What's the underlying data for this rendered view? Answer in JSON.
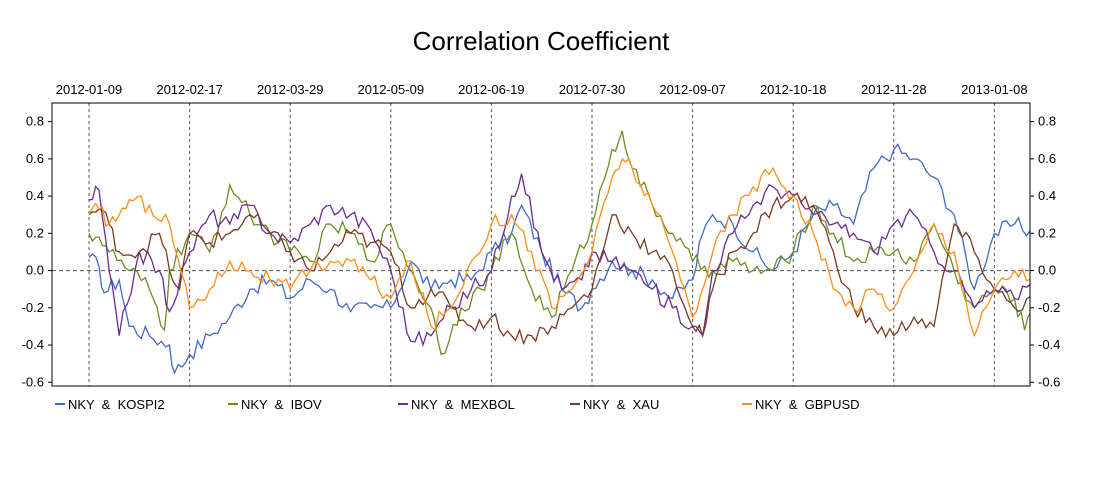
{
  "chart_data": {
    "type": "line",
    "title": "Correlation Coefficient",
    "xlabel": "",
    "ylabel": "",
    "x_tick_labels": [
      "2012-01-09",
      "2012-02-17",
      "2012-03-29",
      "2012-05-09",
      "2012-06-19",
      "2012-07-30",
      "2012-09-07",
      "2012-10-18",
      "2012-11-28",
      "2013-01-08"
    ],
    "x_range": [
      0,
      9
    ],
    "ylim": [
      -0.62,
      0.9
    ],
    "y_ticks": [
      0.8,
      0.6,
      0.4,
      0.2,
      0.0,
      -0.2,
      -0.4,
      -0.6
    ],
    "y_tick_labels": [
      "0.8",
      "0.6",
      "0.4",
      "0.2",
      "0.0",
      "-0.2",
      "-0.4",
      "-0.6"
    ],
    "legend_position": "bottom",
    "grid": "vertical dashed lines at date ticks, horizontal dashed line at 0",
    "series": [
      {
        "name": "NKY  &  KOSPI2",
        "color": "#4169c8",
        "anchors": [
          [
            0,
            0.07
          ],
          [
            0.1,
            0.02
          ],
          [
            0.15,
            -0.12
          ],
          [
            0.3,
            -0.05
          ],
          [
            0.4,
            -0.3
          ],
          [
            0.6,
            -0.35
          ],
          [
            0.8,
            -0.4
          ],
          [
            0.85,
            -0.55
          ],
          [
            1.0,
            -0.45
          ],
          [
            1.2,
            -0.35
          ],
          [
            1.4,
            -0.25
          ],
          [
            1.6,
            -0.1
          ],
          [
            1.8,
            -0.05
          ],
          [
            2.0,
            -0.15
          ],
          [
            2.2,
            -0.05
          ],
          [
            2.4,
            -0.1
          ],
          [
            2.6,
            -0.22
          ],
          [
            2.8,
            -0.2
          ],
          [
            3.0,
            -0.2
          ],
          [
            3.2,
            0.05
          ],
          [
            3.4,
            -0.1
          ],
          [
            3.6,
            -0.05
          ],
          [
            3.8,
            -0.05
          ],
          [
            4.0,
            0.1
          ],
          [
            4.2,
            0.2
          ],
          [
            4.3,
            0.35
          ],
          [
            4.5,
            0.1
          ],
          [
            4.7,
            -0.1
          ],
          [
            4.9,
            -0.2
          ],
          [
            5.0,
            -0.1
          ],
          [
            5.2,
            0.05
          ],
          [
            5.4,
            0.0
          ],
          [
            5.6,
            -0.05
          ],
          [
            5.8,
            -0.15
          ],
          [
            6.0,
            -0.05
          ],
          [
            6.1,
            0.2
          ],
          [
            6.2,
            0.3
          ],
          [
            6.4,
            0.25
          ],
          [
            6.6,
            0.1
          ],
          [
            6.8,
            0.0
          ],
          [
            7.0,
            0.1
          ],
          [
            7.2,
            0.3
          ],
          [
            7.4,
            0.35
          ],
          [
            7.6,
            0.25
          ],
          [
            7.8,
            0.55
          ],
          [
            8.0,
            0.65
          ],
          [
            8.2,
            0.6
          ],
          [
            8.4,
            0.5
          ],
          [
            8.6,
            0.3
          ],
          [
            8.8,
            -0.1
          ],
          [
            9.0,
            0.2
          ],
          [
            9.2,
            0.25
          ],
          [
            9.4,
            0.2
          ]
        ]
      },
      {
        "name": "NKY  &  IBOV",
        "color": "#6b8e23",
        "anchors": [
          [
            0,
            0.2
          ],
          [
            0.1,
            0.18
          ],
          [
            0.2,
            0.1
          ],
          [
            0.4,
            0.0
          ],
          [
            0.6,
            -0.1
          ],
          [
            0.75,
            -0.32
          ],
          [
            0.8,
            0.0
          ],
          [
            1.0,
            0.2
          ],
          [
            1.2,
            0.1
          ],
          [
            1.4,
            0.46
          ],
          [
            1.6,
            0.3
          ],
          [
            1.8,
            0.2
          ],
          [
            2.0,
            0.1
          ],
          [
            2.2,
            0.05
          ],
          [
            2.4,
            0.25
          ],
          [
            2.6,
            0.2
          ],
          [
            2.8,
            0.05
          ],
          [
            3.0,
            0.25
          ],
          [
            3.2,
            0.0
          ],
          [
            3.4,
            -0.2
          ],
          [
            3.5,
            -0.45
          ],
          [
            3.7,
            -0.2
          ],
          [
            3.9,
            -0.1
          ],
          [
            4.0,
            0.0
          ],
          [
            4.2,
            0.2
          ],
          [
            4.4,
            -0.1
          ],
          [
            4.6,
            -0.25
          ],
          [
            4.8,
            0.0
          ],
          [
            5.0,
            0.25
          ],
          [
            5.2,
            0.65
          ],
          [
            5.3,
            0.75
          ],
          [
            5.4,
            0.55
          ],
          [
            5.6,
            0.35
          ],
          [
            5.8,
            0.2
          ],
          [
            6.0,
            0.05
          ],
          [
            6.2,
            0.0
          ],
          [
            6.4,
            0.05
          ],
          [
            6.6,
            0.0
          ],
          [
            6.8,
            0.0
          ],
          [
            7.0,
            0.1
          ],
          [
            7.2,
            0.35
          ],
          [
            7.4,
            0.2
          ],
          [
            7.6,
            0.05
          ],
          [
            7.8,
            0.1
          ],
          [
            8.0,
            0.1
          ],
          [
            8.2,
            0.05
          ],
          [
            8.4,
            0.25
          ],
          [
            8.6,
            0.0
          ],
          [
            8.8,
            -0.2
          ],
          [
            9.0,
            -0.1
          ],
          [
            9.2,
            -0.15
          ],
          [
            9.3,
            -0.32
          ],
          [
            9.4,
            -0.15
          ]
        ]
      },
      {
        "name": "NKY  &  MEXBOL",
        "color": "#6a2c91",
        "anchors": [
          [
            0,
            0.38
          ],
          [
            0.1,
            0.43
          ],
          [
            0.2,
            0.0
          ],
          [
            0.3,
            -0.35
          ],
          [
            0.5,
            0.1
          ],
          [
            0.7,
            0.0
          ],
          [
            0.8,
            -0.22
          ],
          [
            1.0,
            0.1
          ],
          [
            1.2,
            0.3
          ],
          [
            1.4,
            0.25
          ],
          [
            1.6,
            0.35
          ],
          [
            1.8,
            0.2
          ],
          [
            2.0,
            0.15
          ],
          [
            2.2,
            0.25
          ],
          [
            2.4,
            0.35
          ],
          [
            2.6,
            0.3
          ],
          [
            2.8,
            0.22
          ],
          [
            3.0,
            0.0
          ],
          [
            3.2,
            -0.38
          ],
          [
            3.4,
            -0.35
          ],
          [
            3.6,
            -0.2
          ],
          [
            3.8,
            -0.1
          ],
          [
            4.0,
            0.0
          ],
          [
            4.2,
            0.4
          ],
          [
            4.3,
            0.52
          ],
          [
            4.5,
            0.1
          ],
          [
            4.7,
            -0.1
          ],
          [
            4.9,
            -0.05
          ],
          [
            5.0,
            0.1
          ],
          [
            5.2,
            0.05
          ],
          [
            5.4,
            0.0
          ],
          [
            5.6,
            -0.1
          ],
          [
            5.8,
            -0.2
          ],
          [
            6.0,
            -0.3
          ],
          [
            6.1,
            -0.35
          ],
          [
            6.2,
            0.0
          ],
          [
            6.4,
            0.2
          ],
          [
            6.6,
            0.35
          ],
          [
            6.8,
            0.45
          ],
          [
            7.0,
            0.4
          ],
          [
            7.2,
            0.3
          ],
          [
            7.4,
            0.25
          ],
          [
            7.6,
            0.2
          ],
          [
            7.8,
            0.1
          ],
          [
            8.0,
            0.25
          ],
          [
            8.2,
            0.3
          ],
          [
            8.4,
            0.1
          ],
          [
            8.6,
            0.0
          ],
          [
            8.8,
            -0.2
          ],
          [
            9.0,
            -0.1
          ],
          [
            9.2,
            -0.15
          ],
          [
            9.4,
            0.0
          ]
        ]
      },
      {
        "name": "NKY  &  XAU",
        "color": "#7b3a22",
        "anchors": [
          [
            0,
            0.3
          ],
          [
            0.1,
            0.33
          ],
          [
            0.2,
            0.25
          ],
          [
            0.3,
            0.1
          ],
          [
            0.5,
            0.1
          ],
          [
            0.7,
            0.2
          ],
          [
            0.8,
            0.0
          ],
          [
            0.9,
            -0.1
          ],
          [
            1.0,
            0.2
          ],
          [
            1.2,
            0.15
          ],
          [
            1.4,
            0.2
          ],
          [
            1.6,
            0.3
          ],
          [
            1.8,
            0.2
          ],
          [
            2.0,
            0.1
          ],
          [
            2.2,
            0.0
          ],
          [
            2.4,
            0.1
          ],
          [
            2.6,
            0.2
          ],
          [
            2.8,
            0.15
          ],
          [
            3.0,
            0.1
          ],
          [
            3.2,
            -0.2
          ],
          [
            3.4,
            -0.1
          ],
          [
            3.6,
            -0.2
          ],
          [
            3.8,
            -0.3
          ],
          [
            4.0,
            -0.25
          ],
          [
            4.2,
            -0.35
          ],
          [
            4.4,
            -0.35
          ],
          [
            4.6,
            -0.3
          ],
          [
            4.8,
            -0.2
          ],
          [
            5.0,
            -0.1
          ],
          [
            5.2,
            0.3
          ],
          [
            5.4,
            0.2
          ],
          [
            5.6,
            0.1
          ],
          [
            5.8,
            0.0
          ],
          [
            6.0,
            -0.3
          ],
          [
            6.1,
            -0.35
          ],
          [
            6.2,
            -0.1
          ],
          [
            6.4,
            0.1
          ],
          [
            6.6,
            0.2
          ],
          [
            6.8,
            0.35
          ],
          [
            7.0,
            0.4
          ],
          [
            7.2,
            0.35
          ],
          [
            7.4,
            0.1
          ],
          [
            7.6,
            -0.2
          ],
          [
            7.8,
            -0.3
          ],
          [
            8.0,
            -0.35
          ],
          [
            8.2,
            -0.25
          ],
          [
            8.4,
            -0.3
          ],
          [
            8.6,
            0.25
          ],
          [
            8.8,
            0.1
          ],
          [
            9.0,
            -0.1
          ],
          [
            9.2,
            -0.2
          ],
          [
            9.4,
            -0.15
          ]
        ]
      },
      {
        "name": "NKY  &  GBPUSD",
        "color": "#ff8c1a",
        "anchors": [
          [
            0,
            0.3
          ],
          [
            0.1,
            0.33
          ],
          [
            0.2,
            0.25
          ],
          [
            0.3,
            0.3
          ],
          [
            0.4,
            0.38
          ],
          [
            0.6,
            0.35
          ],
          [
            0.8,
            0.25
          ],
          [
            1.0,
            -0.2
          ],
          [
            1.2,
            -0.1
          ],
          [
            1.4,
            0.05
          ],
          [
            1.6,
            0.0
          ],
          [
            1.8,
            -0.05
          ],
          [
            2.0,
            -0.1
          ],
          [
            2.2,
            0.0
          ],
          [
            2.4,
            0.05
          ],
          [
            2.6,
            0.05
          ],
          [
            2.8,
            -0.05
          ],
          [
            3.0,
            -0.15
          ],
          [
            3.2,
            0.05
          ],
          [
            3.4,
            -0.3
          ],
          [
            3.6,
            -0.2
          ],
          [
            3.8,
            0.05
          ],
          [
            4.0,
            0.25
          ],
          [
            4.2,
            0.3
          ],
          [
            4.4,
            0.1
          ],
          [
            4.6,
            -0.2
          ],
          [
            4.8,
            -0.1
          ],
          [
            5.0,
            0.1
          ],
          [
            5.2,
            0.5
          ],
          [
            5.3,
            0.6
          ],
          [
            5.4,
            0.55
          ],
          [
            5.6,
            0.35
          ],
          [
            5.8,
            0.1
          ],
          [
            6.0,
            -0.25
          ],
          [
            6.2,
            0.1
          ],
          [
            6.4,
            0.3
          ],
          [
            6.6,
            0.45
          ],
          [
            6.8,
            0.55
          ],
          [
            7.0,
            0.4
          ],
          [
            7.2,
            0.2
          ],
          [
            7.4,
            -0.1
          ],
          [
            7.6,
            -0.2
          ],
          [
            7.8,
            -0.1
          ],
          [
            8.0,
            -0.2
          ],
          [
            8.2,
            0.0
          ],
          [
            8.4,
            0.25
          ],
          [
            8.6,
            0.1
          ],
          [
            8.8,
            -0.35
          ],
          [
            9.0,
            -0.1
          ],
          [
            9.2,
            0.0
          ],
          [
            9.4,
            -0.05
          ]
        ]
      }
    ]
  }
}
